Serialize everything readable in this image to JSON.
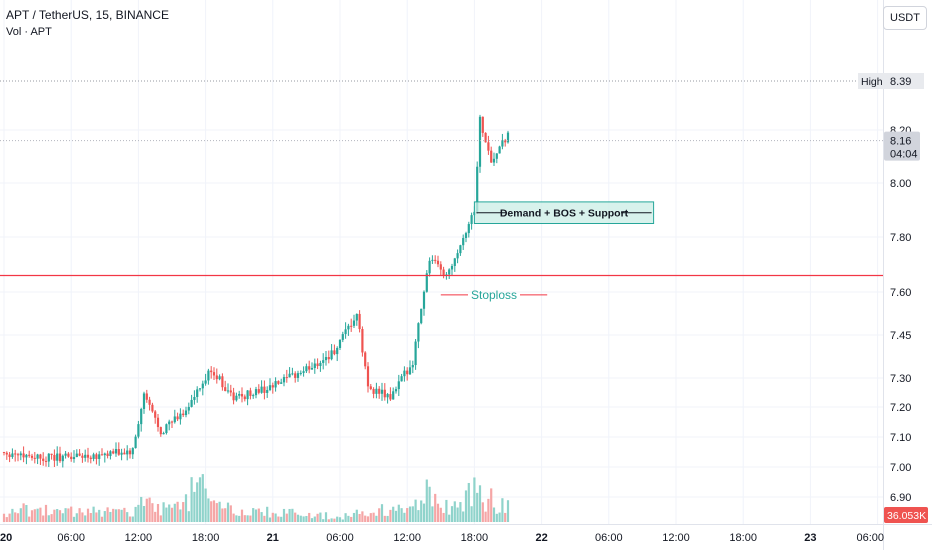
{
  "header": {
    "symbol_line": "APT / TetherUS, 15, BINANCE",
    "volume_line": "Vol · APT",
    "currency_button": "USDT"
  },
  "colors": {
    "up": "#26a69a",
    "down": "#ef5350",
    "vol_up": "#8fd3cb",
    "vol_down": "#f5a6a6",
    "grid": "#f0f3fa",
    "stop_line": "#f23645",
    "demand_fill": "#cbeee6",
    "demand_border": "#26a69a",
    "stoploss_text": "#26a69a",
    "axis_text": "#131722"
  },
  "price_axis": {
    "ticks": [
      "8.20",
      "8.00",
      "7.80",
      "7.60",
      "7.45",
      "7.30",
      "7.20",
      "7.10",
      "7.00",
      "6.90"
    ],
    "high_label": "High",
    "high_value": "8.39",
    "last_price": "8.16",
    "countdown": "04:04",
    "volume_value": "36.053K"
  },
  "time_axis": {
    "labels": [
      "20",
      "06:00",
      "12:00",
      "18:00",
      "21",
      "06:00",
      "12:00",
      "18:00",
      "22",
      "06:00",
      "12:00",
      "18:00",
      "23",
      "06:00"
    ]
  },
  "chart_data": {
    "type": "candlestick",
    "symbol": "APT / TetherUS",
    "interval": "15",
    "exchange": "BINANCE",
    "price_range": [
      6.85,
      8.45
    ],
    "period": {
      "start": "20 00:00",
      "end": "21 21:00"
    },
    "session_high": 8.39,
    "last_price": 8.16,
    "last_volume": "36.053K",
    "anchors": [
      {
        "time": "20 00:00",
        "price": 7.05
      },
      {
        "time": "20 04:00",
        "price": 7.03
      },
      {
        "time": "20 08:00",
        "price": 7.04
      },
      {
        "time": "20 11:30",
        "price": 7.05
      },
      {
        "time": "20 12:30",
        "price": 7.24
      },
      {
        "time": "20 14:00",
        "price": 7.12
      },
      {
        "time": "20 16:00",
        "price": 7.18
      },
      {
        "time": "20 17:30",
        "price": 7.26
      },
      {
        "time": "20 18:30",
        "price": 7.33
      },
      {
        "time": "20 20:30",
        "price": 7.23
      },
      {
        "time": "21 00:00",
        "price": 7.27
      },
      {
        "time": "21 03:00",
        "price": 7.33
      },
      {
        "time": "21 05:30",
        "price": 7.39
      },
      {
        "time": "21 07:30",
        "price": 7.52
      },
      {
        "time": "21 08:30",
        "price": 7.27
      },
      {
        "time": "21 10:30",
        "price": 7.23
      },
      {
        "time": "21 12:30",
        "price": 7.36
      },
      {
        "time": "21 13:15",
        "price": 7.55
      },
      {
        "time": "21 14:00",
        "price": 7.72
      },
      {
        "time": "21 15:30",
        "price": 7.66
      },
      {
        "time": "21 17:00",
        "price": 7.8
      },
      {
        "time": "21 18:00",
        "price": 7.9
      },
      {
        "time": "21 18:30",
        "price": 8.24
      },
      {
        "time": "21 19:30",
        "price": 8.08
      },
      {
        "time": "21 21:00",
        "price": 8.18
      }
    ],
    "volume_profile": [
      {
        "time": "20 00:00",
        "volume": 0.35
      },
      {
        "time": "20 11:00",
        "volume": 0.25
      },
      {
        "time": "20 12:30",
        "volume": 0.55
      },
      {
        "time": "20 14:00",
        "volume": 0.3
      },
      {
        "time": "20 17:30",
        "volume": 1.0
      },
      {
        "time": "20 19:00",
        "volume": 0.35
      },
      {
        "time": "21 06:00",
        "volume": 0.15
      },
      {
        "time": "21 08:30",
        "volume": 0.35
      },
      {
        "time": "21 12:00",
        "volume": 0.3
      },
      {
        "time": "21 13:30",
        "volume": 0.8
      },
      {
        "time": "21 16:00",
        "volume": 0.3
      },
      {
        "time": "21 18:00",
        "volume": 0.9
      },
      {
        "time": "21 21:00",
        "volume": 0.45
      }
    ],
    "annotations": {
      "stop_line_price": 7.66,
      "demand_zone": {
        "label": "Demand + BOS + Support",
        "price_top": 7.93,
        "price_bottom": 7.85,
        "time_start": "21 18:00",
        "time_end": "22 10:00"
      },
      "stoploss": {
        "label": "Stoploss",
        "price": 7.59,
        "time_start": "21 15:00",
        "time_end": "22 00:30"
      }
    }
  }
}
